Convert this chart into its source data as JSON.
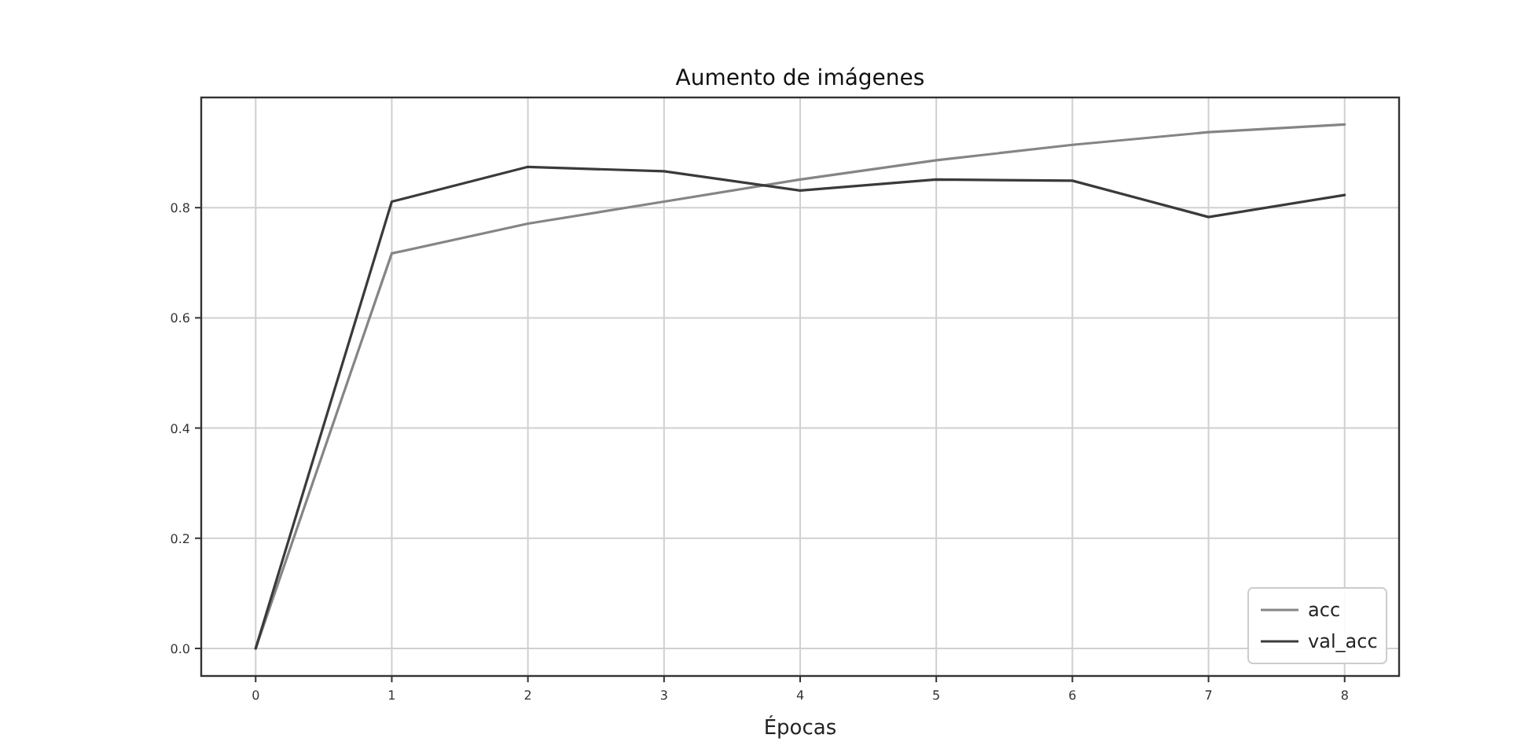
{
  "chart_data": {
    "type": "line",
    "title": "Aumento de imágenes",
    "xlabel": "Épocas",
    "x": [
      0,
      1,
      2,
      3,
      4,
      5,
      6,
      7,
      8
    ],
    "series": [
      {
        "name": "acc",
        "color": "#858585",
        "values": [
          0,
          0.717,
          0.771,
          0.811,
          0.851,
          0.886,
          0.914,
          0.937,
          0.951
        ]
      },
      {
        "name": "val_acc",
        "color": "#3a3a3a",
        "values": [
          0,
          0.811,
          0.874,
          0.866,
          0.831,
          0.851,
          0.849,
          0.783,
          0.823
        ]
      }
    ],
    "xlim": [
      -0.4,
      8.4
    ],
    "xticks": [
      0,
      1,
      2,
      3,
      4,
      5,
      6,
      7,
      8
    ],
    "ylim": [
      -0.05,
      1.0
    ],
    "yticks": [
      {
        "value": 0,
        "label": "0.0"
      },
      {
        "value": 0.2,
        "label": "0.2"
      },
      {
        "value": 0.4,
        "label": "0.4"
      },
      {
        "value": 0.6,
        "label": "0.6"
      },
      {
        "value": 0.8,
        "label": "0.8"
      }
    ],
    "grid": true,
    "legend": "bottom right",
    "marker": "none",
    "line_style": "solid"
  }
}
